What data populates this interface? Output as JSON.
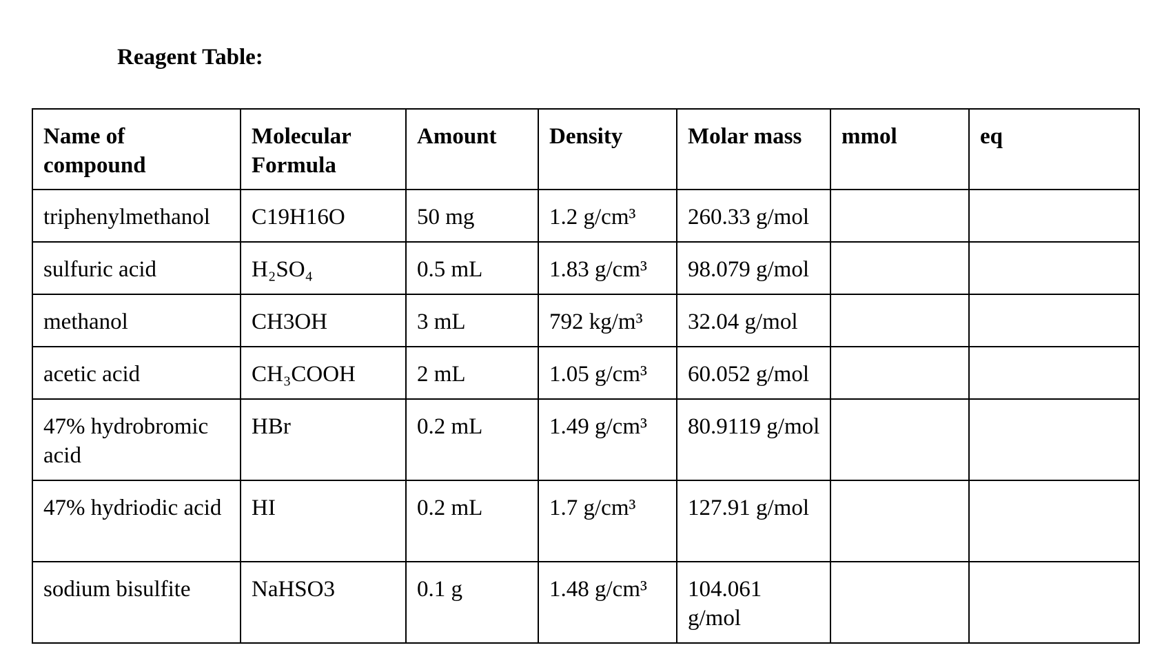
{
  "document": {
    "heading": "Reagent Table:"
  },
  "table": {
    "headers": {
      "name": "Name of compound",
      "formula": "Molecular Formula",
      "amount": "Amount",
      "density": "Density",
      "molar_mass": "Molar mass",
      "mmol": "mmol",
      "eq": "eq"
    },
    "rows": [
      {
        "name": "triphenylmethanol",
        "formula": "C19H16O",
        "amount": "50 mg",
        "density": "1.2 g/cm³",
        "molar_mass": "260.33 g/mol",
        "mmol": "",
        "eq": ""
      },
      {
        "name": "sulfuric acid",
        "formula": "H₂SO₄",
        "amount": "0.5 mL",
        "density": "1.83 g/cm³",
        "molar_mass": "98.079 g/mol",
        "mmol": "",
        "eq": ""
      },
      {
        "name": "methanol",
        "formula": "CH3OH",
        "amount": "3 mL",
        "density": "792 kg/m³",
        "molar_mass": "32.04 g/mol",
        "mmol": "",
        "eq": ""
      },
      {
        "name": "acetic acid",
        "formula": "CH₃COOH",
        "amount": "2 mL",
        "density": "1.05 g/cm³",
        "molar_mass": "60.052 g/mol",
        "mmol": "",
        "eq": ""
      },
      {
        "name": "47% hydrobromic acid",
        "formula": "HBr",
        "amount": "0.2 mL",
        "density": "1.49 g/cm³",
        "molar_mass": "80.9119 g/mol",
        "mmol": "",
        "eq": ""
      },
      {
        "name": "47% hydriodic acid",
        "formula": "HI",
        "amount": "0.2 mL",
        "density": "1.7 g/cm³",
        "molar_mass": "127.91 g/mol",
        "mmol": "",
        "eq": ""
      },
      {
        "name": "sodium bisulfite",
        "formula": "NaHSO3",
        "amount": "0.1 g",
        "density": "1.48 g/cm³",
        "molar_mass": "104.061 g/mol",
        "mmol": "",
        "eq": ""
      }
    ]
  }
}
